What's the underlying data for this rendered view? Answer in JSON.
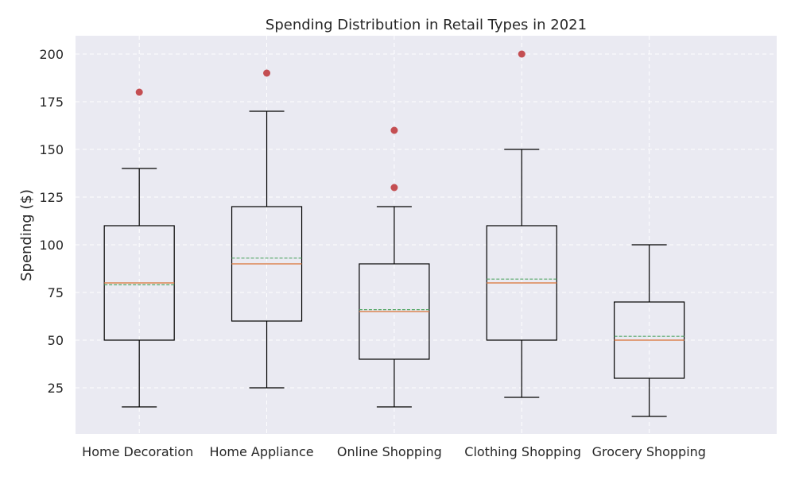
{
  "chart_data": {
    "type": "box",
    "title": "Spending Distribution in Retail Types in 2021",
    "xlabel": "",
    "ylabel": "Spending ($)",
    "ylim": [
      0,
      210
    ],
    "yticks": [
      25,
      50,
      75,
      100,
      125,
      150,
      175,
      200
    ],
    "grid": true,
    "categories": [
      "Home Decoration",
      "Home Appliance",
      "Online Shopping",
      "Clothing Shopping",
      "Grocery Shopping"
    ],
    "boxes": [
      {
        "name": "Home Decoration",
        "min": 15,
        "q1": 50,
        "median": 80,
        "mean": 79,
        "q3": 110,
        "max": 140,
        "outliers": [
          180
        ]
      },
      {
        "name": "Home Appliance",
        "min": 25,
        "q1": 60,
        "median": 90,
        "mean": 93,
        "q3": 120,
        "max": 170,
        "outliers": [
          190
        ]
      },
      {
        "name": "Online Shopping",
        "min": 15,
        "q1": 40,
        "median": 65,
        "mean": 66,
        "q3": 90,
        "max": 120,
        "outliers": [
          130,
          160
        ]
      },
      {
        "name": "Clothing Shopping",
        "min": 20,
        "q1": 50,
        "median": 80,
        "mean": 82,
        "q3": 110,
        "max": 150,
        "outliers": [
          200
        ]
      },
      {
        "name": "Grocery Shopping",
        "min": 10,
        "q1": 30,
        "median": 50,
        "mean": 52,
        "q3": 70,
        "max": 100,
        "outliers": []
      }
    ],
    "colors": {
      "plot_background": "#eaeaf2",
      "grid": "#ffffff",
      "box": "#000000",
      "median": "#dd8452",
      "mean": "#55a868",
      "outlier": "#c44e52"
    }
  }
}
